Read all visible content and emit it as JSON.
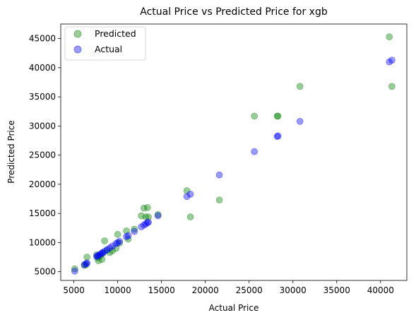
{
  "chart_data": {
    "type": "scatter",
    "title": "Actual Price vs Predicted Price for xgb",
    "xlabel": "Actual Price",
    "ylabel": "Predicted Price",
    "xlim": [
      3500,
      43000
    ],
    "ylim": [
      3500,
      47500
    ],
    "xticks": [
      5000,
      10000,
      15000,
      20000,
      25000,
      30000,
      35000,
      40000
    ],
    "yticks": [
      5000,
      10000,
      15000,
      20000,
      25000,
      30000,
      35000,
      40000,
      45000
    ],
    "grid": false,
    "legend_position": "top-left",
    "series": [
      {
        "name": "Predicted",
        "color": "#008000",
        "alpha": 0.4,
        "points": [
          [
            5100,
            5500
          ],
          [
            6200,
            6100
          ],
          [
            6400,
            6200
          ],
          [
            6500,
            7500
          ],
          [
            7600,
            7900
          ],
          [
            7700,
            7400
          ],
          [
            7800,
            6900
          ],
          [
            8000,
            7700
          ],
          [
            8200,
            7100
          ],
          [
            8300,
            8100
          ],
          [
            8500,
            10300
          ],
          [
            8800,
            8700
          ],
          [
            9100,
            8300
          ],
          [
            9400,
            8600
          ],
          [
            9800,
            9000
          ],
          [
            10000,
            11400
          ],
          [
            10200,
            9900
          ],
          [
            11000,
            12000
          ],
          [
            11200,
            10600
          ],
          [
            11900,
            12300
          ],
          [
            12700,
            14600
          ],
          [
            13000,
            15900
          ],
          [
            13200,
            14400
          ],
          [
            13400,
            16000
          ],
          [
            13500,
            14400
          ],
          [
            14600,
            14800
          ],
          [
            17900,
            18900
          ],
          [
            18300,
            14400
          ],
          [
            21600,
            17300
          ],
          [
            25600,
            31700
          ],
          [
            28200,
            31700
          ],
          [
            28300,
            31700
          ],
          [
            30800,
            36800
          ],
          [
            41000,
            45300
          ],
          [
            41300,
            36800
          ]
        ]
      },
      {
        "name": "Actual",
        "color": "#0000ff",
        "alpha": 0.4,
        "points": [
          [
            5100,
            5100
          ],
          [
            6200,
            6200
          ],
          [
            6400,
            6400
          ],
          [
            6500,
            6500
          ],
          [
            7600,
            7600
          ],
          [
            7700,
            7700
          ],
          [
            7800,
            7800
          ],
          [
            8000,
            8000
          ],
          [
            8200,
            8200
          ],
          [
            8300,
            8300
          ],
          [
            8500,
            8500
          ],
          [
            8800,
            8800
          ],
          [
            9100,
            9100
          ],
          [
            9400,
            9400
          ],
          [
            9800,
            9800
          ],
          [
            10000,
            10000
          ],
          [
            10200,
            10200
          ],
          [
            11000,
            11000
          ],
          [
            11200,
            11200
          ],
          [
            11900,
            11900
          ],
          [
            12700,
            12700
          ],
          [
            13000,
            13000
          ],
          [
            13200,
            13200
          ],
          [
            13400,
            13400
          ],
          [
            13500,
            13500
          ],
          [
            14600,
            14600
          ],
          [
            17900,
            17900
          ],
          [
            18300,
            18300
          ],
          [
            21600,
            21600
          ],
          [
            25600,
            25600
          ],
          [
            28200,
            28200
          ],
          [
            28300,
            28300
          ],
          [
            30800,
            30800
          ],
          [
            41000,
            41000
          ],
          [
            41300,
            41300
          ]
        ]
      }
    ]
  }
}
